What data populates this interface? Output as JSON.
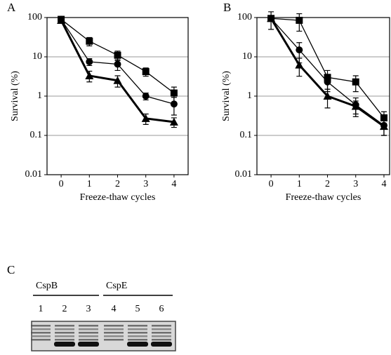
{
  "chart_data": [
    {
      "type": "line",
      "panel_label": "A",
      "y_label": "Survival (%)",
      "x_label": "Freeze-thaw cycles",
      "log_y": true,
      "grid": true,
      "xlim": [
        -0.5,
        4.5
      ],
      "ylim": [
        0.01,
        100
      ],
      "xticks": [
        0,
        1,
        2,
        3,
        4
      ],
      "yticks": [
        0.01,
        0.1,
        1,
        10,
        100
      ],
      "x": [
        0,
        1,
        2,
        3,
        4
      ],
      "series": [
        {
          "marker": "square",
          "color": "#000000",
          "values": [
            90,
            25,
            11,
            4.2,
            1.2
          ],
          "errors": [
            8,
            6,
            3,
            1,
            0.5
          ]
        },
        {
          "marker": "circle",
          "color": "#000000",
          "values": [
            90,
            7.5,
            6.5,
            1,
            0.63
          ],
          "errors": [
            8,
            1.5,
            2,
            0.2,
            0.3
          ]
        },
        {
          "marker": "triangle",
          "color": "#000000",
          "values": [
            85,
            3.3,
            2.5,
            0.27,
            0.22
          ],
          "errors": [
            8,
            1,
            0.8,
            0.08,
            0.06
          ]
        }
      ]
    },
    {
      "type": "line",
      "panel_label": "B",
      "y_label": "Survival (%)",
      "x_label": "Freeze-thaw cycles",
      "log_y": true,
      "grid": true,
      "xlim": [
        -0.5,
        4.2
      ],
      "ylim": [
        0.01,
        100
      ],
      "xticks": [
        0,
        1,
        2,
        3,
        4
      ],
      "yticks": [
        0.01,
        0.1,
        1,
        10,
        100
      ],
      "x": [
        0,
        1,
        2,
        3,
        4
      ],
      "series": [
        {
          "marker": "square",
          "color": "#000000",
          "values": [
            95,
            85,
            3.0,
            2.3,
            0.28
          ],
          "errors": [
            10,
            40,
            1.5,
            1,
            0.12
          ]
        },
        {
          "marker": "circle",
          "color": "#000000",
          "values": [
            95,
            15,
            2.3,
            0.6,
            0.18
          ],
          "errors": [
            10,
            8,
            1,
            0.3,
            0.08
          ]
        },
        {
          "marker": "triangle",
          "color": "#000000",
          "values": [
            95,
            6.2,
            1,
            0.55,
            0.17
          ],
          "errors": [
            45,
            3,
            0.5,
            0.2,
            0.07
          ]
        }
      ]
    }
  ],
  "gel": {
    "panel_label": "C",
    "groups": [
      "CspB",
      "CspE"
    ],
    "lanes": [
      "1",
      "2",
      "3",
      "4",
      "5",
      "6"
    ]
  }
}
